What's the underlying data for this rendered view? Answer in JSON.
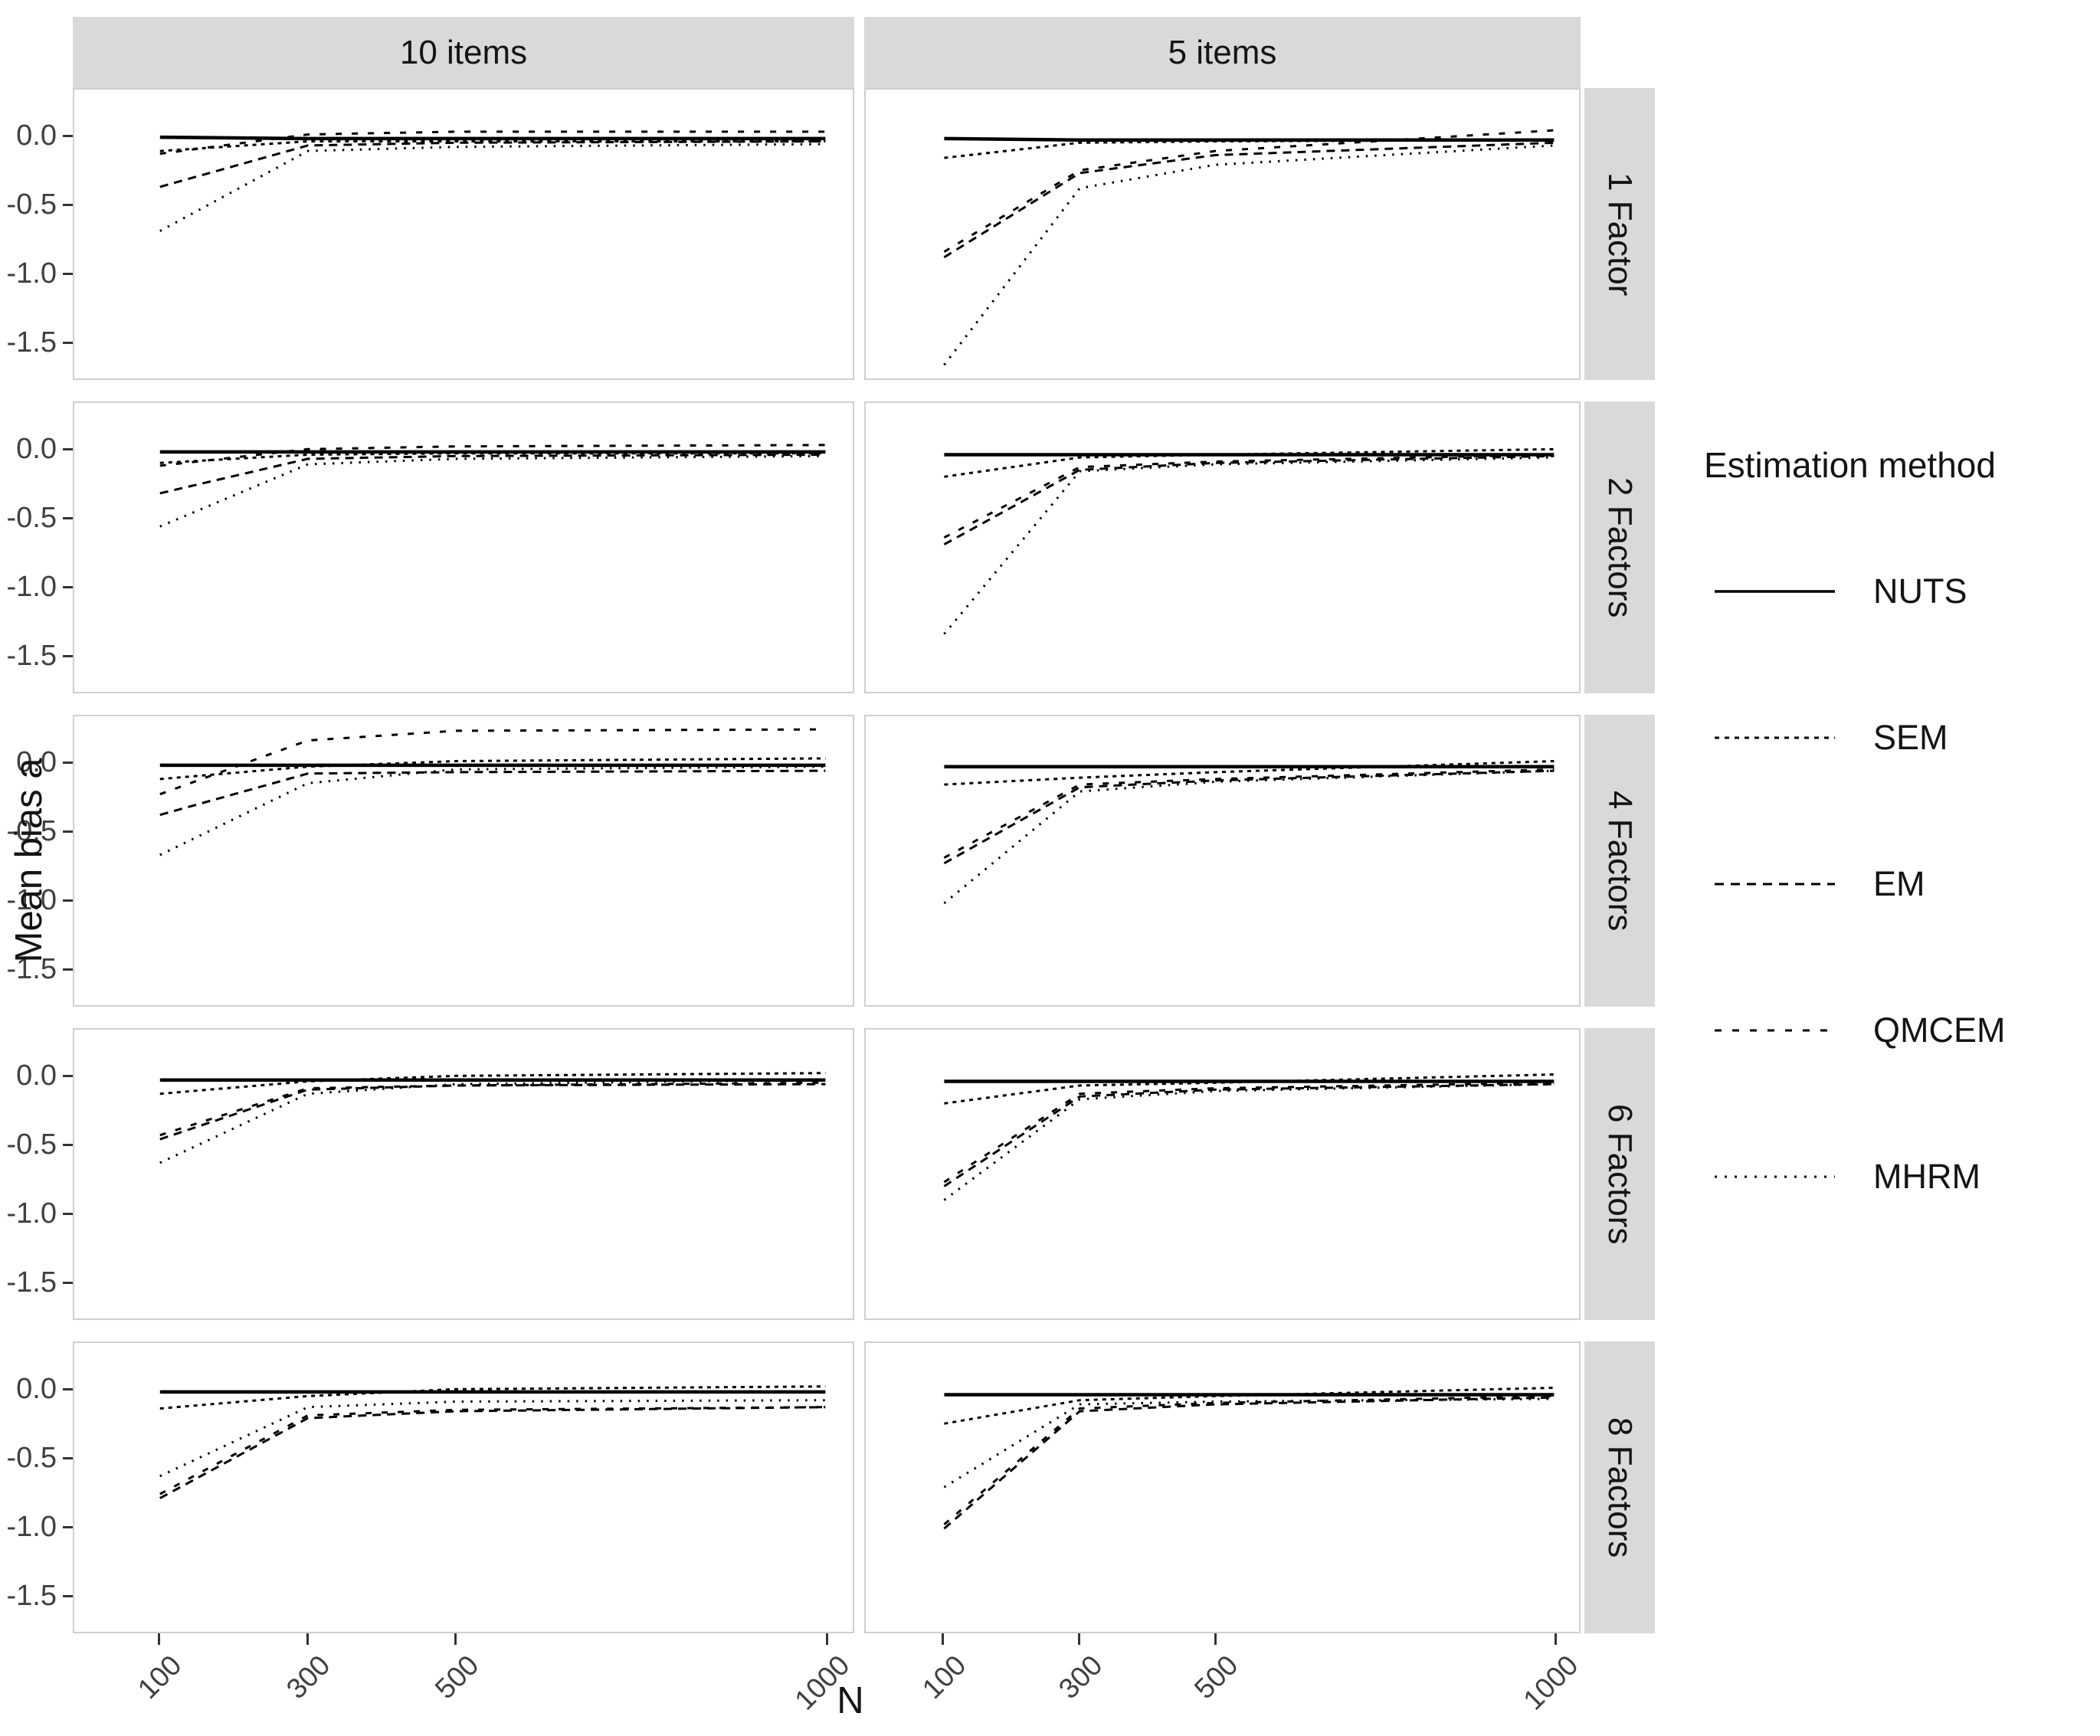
{
  "axes": {
    "x_title": "N",
    "y_title": "Mean bias a",
    "x_tick_labels": [
      "100",
      "300",
      "500",
      "1000"
    ],
    "y_tick_labels": [
      "0.0",
      "-0.5",
      "-1.0",
      "-1.5"
    ]
  },
  "legend": {
    "title": "Estimation method",
    "entries": [
      {
        "label": "NUTS",
        "dash": "none",
        "stroke_width": 3.5
      },
      {
        "label": "SEM",
        "dash": "6 7",
        "stroke_width": 3
      },
      {
        "label": "EM",
        "dash": "12 9",
        "stroke_width": 3
      },
      {
        "label": "QMCEM",
        "dash": "9 14",
        "stroke_width": 3
      },
      {
        "label": "MHRM",
        "dash": "3 10",
        "stroke_width": 3
      }
    ]
  },
  "colors": {
    "strip_bg": "#d9d9d9",
    "line": "#000000",
    "panel_border": "#cfcfcf",
    "tick": "#333333",
    "axis_text": "#404040",
    "title_text": "#141414"
  },
  "chart_data": {
    "type": "line",
    "title": "",
    "xlabel": "N",
    "ylabel": "Mean bias a",
    "facet_columns": [
      "10 items",
      "5 items"
    ],
    "facet_rows": [
      "1 Factor",
      "2 Factors",
      "4 Factors",
      "6 Factors",
      "8 Factors"
    ],
    "x": [
      100,
      300,
      500,
      1000
    ],
    "x_ticks": [
      100,
      300,
      500,
      1000
    ],
    "y_ticks": [
      0.0,
      -0.5,
      -1.0,
      -1.5
    ],
    "ylim": [
      -1.77,
      0.345
    ],
    "legend_position": "right",
    "grid": false,
    "line_styles": {
      "NUTS": {
        "dash": "none",
        "width": 4.5
      },
      "SEM": {
        "dash": "5 6",
        "width": 3
      },
      "EM": {
        "dash": "11 8",
        "width": 3
      },
      "QMCEM": {
        "dash": "8 13",
        "width": 3
      },
      "MHRM": {
        "dash": "2.5 9",
        "width": 3
      }
    },
    "panels": [
      {
        "factor_row": "1 Factor",
        "items_col": "10 items",
        "series": [
          {
            "name": "NUTS",
            "values": [
              0.0,
              -0.01,
              -0.01,
              -0.01
            ]
          },
          {
            "name": "SEM",
            "values": [
              -0.1,
              -0.03,
              -0.03,
              -0.03
            ]
          },
          {
            "name": "EM",
            "values": [
              -0.36,
              -0.06,
              -0.04,
              -0.03
            ]
          },
          {
            "name": "QMCEM",
            "values": [
              -0.12,
              0.02,
              0.04,
              0.04
            ]
          },
          {
            "name": "MHRM",
            "values": [
              -0.68,
              -0.1,
              -0.07,
              -0.05
            ]
          }
        ]
      },
      {
        "factor_row": "1 Factor",
        "items_col": "5 items",
        "series": [
          {
            "name": "NUTS",
            "values": [
              -0.01,
              -0.02,
              -0.02,
              -0.02
            ]
          },
          {
            "name": "SEM",
            "values": [
              -0.15,
              -0.04,
              -0.03,
              -0.02
            ]
          },
          {
            "name": "EM",
            "values": [
              -0.87,
              -0.26,
              -0.13,
              -0.04
            ]
          },
          {
            "name": "QMCEM",
            "values": [
              -0.83,
              -0.24,
              -0.1,
              0.05
            ]
          },
          {
            "name": "MHRM",
            "values": [
              -1.65,
              -0.37,
              -0.2,
              -0.06
            ]
          }
        ]
      },
      {
        "factor_row": "2 Factors",
        "items_col": "10 items",
        "series": [
          {
            "name": "NUTS",
            "values": [
              -0.01,
              -0.01,
              -0.01,
              -0.01
            ]
          },
          {
            "name": "SEM",
            "values": [
              -0.09,
              -0.03,
              -0.02,
              -0.02
            ]
          },
          {
            "name": "EM",
            "values": [
              -0.31,
              -0.06,
              -0.04,
              -0.03
            ]
          },
          {
            "name": "QMCEM",
            "values": [
              -0.11,
              0.01,
              0.03,
              0.04
            ]
          },
          {
            "name": "MHRM",
            "values": [
              -0.55,
              -0.1,
              -0.06,
              -0.04
            ]
          }
        ]
      },
      {
        "factor_row": "2 Factors",
        "items_col": "5 items",
        "series": [
          {
            "name": "NUTS",
            "values": [
              -0.03,
              -0.03,
              -0.03,
              -0.03
            ]
          },
          {
            "name": "SEM",
            "values": [
              -0.19,
              -0.05,
              -0.03,
              0.01
            ]
          },
          {
            "name": "EM",
            "values": [
              -0.68,
              -0.14,
              -0.09,
              -0.04
            ]
          },
          {
            "name": "QMCEM",
            "values": [
              -0.63,
              -0.12,
              -0.08,
              -0.03
            ]
          },
          {
            "name": "MHRM",
            "values": [
              -1.33,
              -0.15,
              -0.1,
              -0.05
            ]
          }
        ]
      },
      {
        "factor_row": "4 Factors",
        "items_col": "10 items",
        "series": [
          {
            "name": "NUTS",
            "values": [
              -0.01,
              -0.01,
              -0.01,
              -0.01
            ]
          },
          {
            "name": "SEM",
            "values": [
              -0.11,
              -0.02,
              0.02,
              0.04
            ]
          },
          {
            "name": "EM",
            "values": [
              -0.37,
              -0.07,
              -0.06,
              -0.05
            ]
          },
          {
            "name": "QMCEM",
            "values": [
              -0.22,
              0.17,
              0.24,
              0.25
            ]
          },
          {
            "name": "MHRM",
            "values": [
              -0.66,
              -0.14,
              -0.04,
              -0.02
            ]
          }
        ]
      },
      {
        "factor_row": "4 Factors",
        "items_col": "5 items",
        "series": [
          {
            "name": "NUTS",
            "values": [
              -0.02,
              -0.02,
              -0.02,
              -0.02
            ]
          },
          {
            "name": "SEM",
            "values": [
              -0.15,
              -0.1,
              -0.06,
              0.02
            ]
          },
          {
            "name": "EM",
            "values": [
              -0.72,
              -0.17,
              -0.12,
              -0.05
            ]
          },
          {
            "name": "QMCEM",
            "values": [
              -0.68,
              -0.15,
              -0.11,
              -0.04
            ]
          },
          {
            "name": "MHRM",
            "values": [
              -1.01,
              -0.2,
              -0.13,
              -0.05
            ]
          }
        ]
      },
      {
        "factor_row": "6 Factors",
        "items_col": "10 items",
        "series": [
          {
            "name": "NUTS",
            "values": [
              -0.02,
              -0.02,
              -0.02,
              -0.02
            ]
          },
          {
            "name": "SEM",
            "values": [
              -0.12,
              -0.03,
              0.01,
              0.03
            ]
          },
          {
            "name": "EM",
            "values": [
              -0.45,
              -0.09,
              -0.06,
              -0.05
            ]
          },
          {
            "name": "QMCEM",
            "values": [
              -0.42,
              -0.08,
              -0.06,
              -0.04
            ]
          },
          {
            "name": "MHRM",
            "values": [
              -0.62,
              -0.12,
              -0.05,
              -0.02
            ]
          }
        ]
      },
      {
        "factor_row": "6 Factors",
        "items_col": "5 items",
        "series": [
          {
            "name": "NUTS",
            "values": [
              -0.03,
              -0.03,
              -0.03,
              -0.03
            ]
          },
          {
            "name": "SEM",
            "values": [
              -0.19,
              -0.06,
              -0.04,
              0.02
            ]
          },
          {
            "name": "EM",
            "values": [
              -0.79,
              -0.14,
              -0.09,
              -0.05
            ]
          },
          {
            "name": "QMCEM",
            "values": [
              -0.76,
              -0.12,
              -0.08,
              -0.04
            ]
          },
          {
            "name": "MHRM",
            "values": [
              -0.89,
              -0.16,
              -0.1,
              -0.05
            ]
          }
        ]
      },
      {
        "factor_row": "8 Factors",
        "items_col": "10 items",
        "series": [
          {
            "name": "NUTS",
            "values": [
              -0.01,
              -0.01,
              -0.01,
              -0.01
            ]
          },
          {
            "name": "SEM",
            "values": [
              -0.13,
              -0.04,
              0.01,
              0.03
            ]
          },
          {
            "name": "EM",
            "values": [
              -0.78,
              -0.2,
              -0.15,
              -0.12
            ]
          },
          {
            "name": "QMCEM",
            "values": [
              -0.75,
              -0.18,
              -0.14,
              -0.12
            ]
          },
          {
            "name": "MHRM",
            "values": [
              -0.62,
              -0.12,
              -0.08,
              -0.07
            ]
          }
        ]
      },
      {
        "factor_row": "8 Factors",
        "items_col": "5 items",
        "series": [
          {
            "name": "NUTS",
            "values": [
              -0.03,
              -0.03,
              -0.03,
              -0.03
            ]
          },
          {
            "name": "SEM",
            "values": [
              -0.24,
              -0.07,
              -0.04,
              0.02
            ]
          },
          {
            "name": "EM",
            "values": [
              -1.0,
              -0.15,
              -0.1,
              -0.05
            ]
          },
          {
            "name": "QMCEM",
            "values": [
              -0.97,
              -0.13,
              -0.09,
              -0.04
            ]
          },
          {
            "name": "MHRM",
            "values": [
              -0.7,
              -0.1,
              -0.08,
              -0.06
            ]
          }
        ]
      }
    ]
  }
}
